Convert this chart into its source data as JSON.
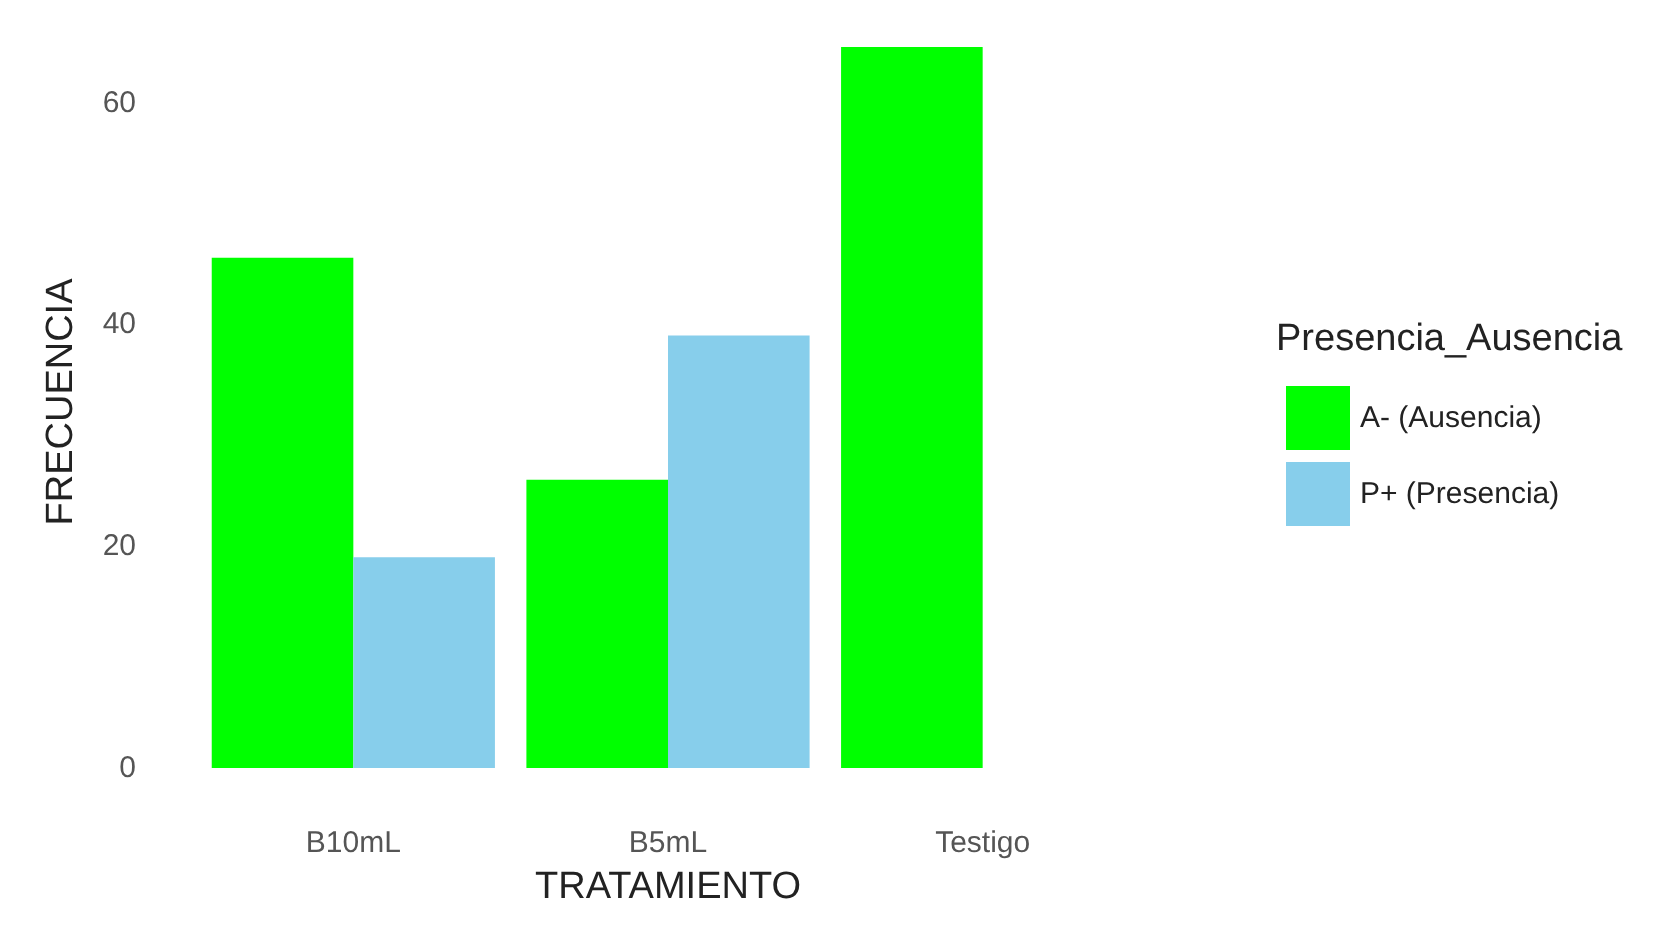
{
  "chart_data": {
    "type": "bar",
    "xlabel": "TRATAMIENTO",
    "ylabel": "FRECUENCIA",
    "legend_title": "Presencia_Ausencia",
    "categories": [
      "B10mL",
      "B5mL",
      "Testigo"
    ],
    "series": [
      {
        "name": "A- (Ausencia)",
        "color": "#00ff00",
        "values": [
          46,
          26,
          65
        ]
      },
      {
        "name": "P+ (Presencia)",
        "color": "#87ceeb",
        "values": [
          19,
          39,
          null
        ]
      }
    ],
    "ylim": [
      0,
      66
    ],
    "yticks": [
      0,
      20,
      40,
      60
    ],
    "grid": false,
    "legend": "right"
  }
}
